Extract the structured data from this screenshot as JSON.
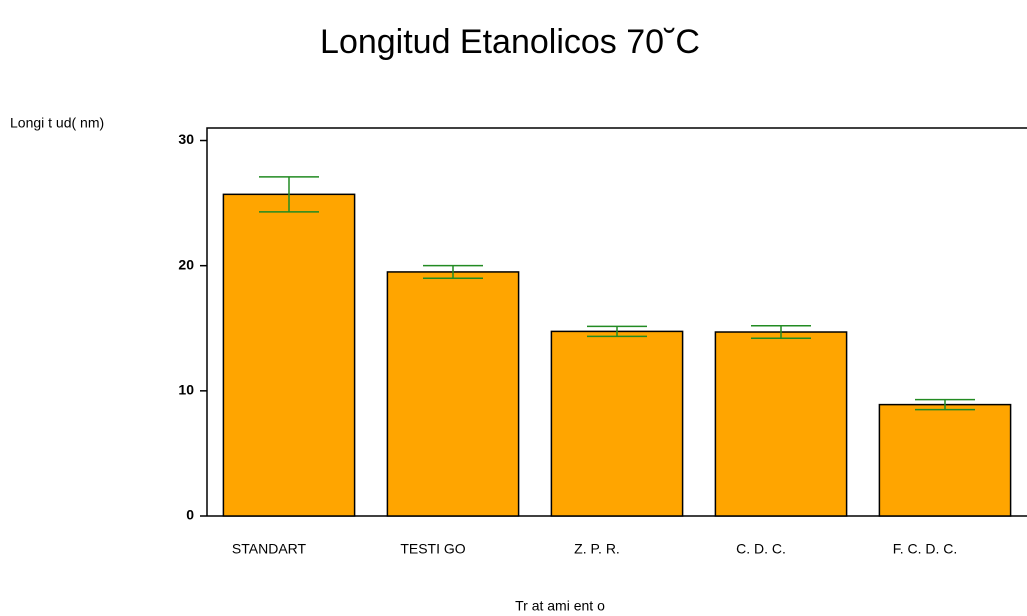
{
  "chart_data": {
    "type": "bar",
    "title": "Longitud Etanolicos 70˘C",
    "y_label": "Longi t ud( nm)",
    "x_label": "Tr at ami ent o",
    "categories": [
      "STANDART",
      "TESTI GO",
      "Z. P. R.",
      "C. D. C.",
      "F. C. D. C."
    ],
    "values": [
      25.7,
      19.5,
      14.75,
      14.7,
      8.9
    ],
    "errors": [
      1.4,
      0.5,
      0.4,
      0.5,
      0.4
    ],
    "color": "#FFA500",
    "error_color": "#228B22",
    "ylim": [
      0,
      31
    ],
    "yticks": [
      0,
      10,
      20,
      30
    ]
  }
}
